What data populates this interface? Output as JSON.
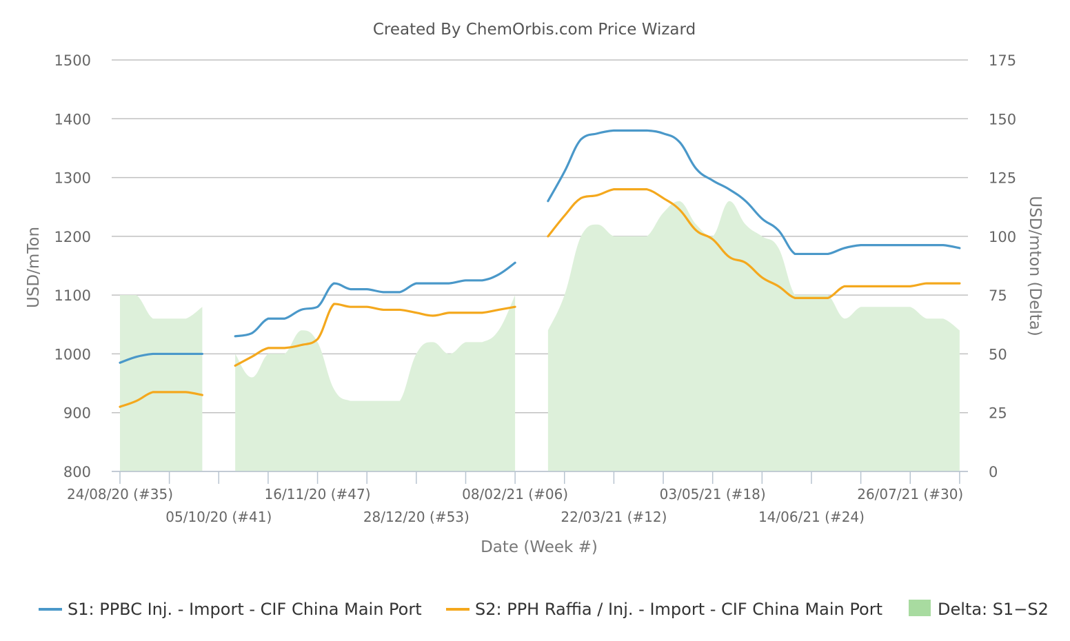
{
  "chart_data": {
    "type": "line",
    "title": "Created By ChemOrbis.com Price Wizard",
    "xlabel": "Date (Week #)",
    "ylabel_left": "USD/mTon",
    "ylabel_right": "USD/mton (Delta)",
    "ylim_left": [
      800,
      1500
    ],
    "ylim_right": [
      0,
      175
    ],
    "yticks_left": [
      "800",
      "900",
      "1000",
      "1100",
      "1200",
      "1300",
      "1400",
      "1500"
    ],
    "yticks_right": [
      "0",
      "25",
      "50",
      "75",
      "100",
      "125",
      "150",
      "175"
    ],
    "grid": true,
    "legend_position": "bottom",
    "x_week_ticks": [
      {
        "week": 0,
        "label": "24/08/20 (#35)"
      },
      {
        "week": 6,
        "label": "05/10/20 (#41)"
      },
      {
        "week": 12,
        "label": "16/11/20 (#47)"
      },
      {
        "week": 18,
        "label": "28/12/20 (#53)"
      },
      {
        "week": 24,
        "label": "08/02/21 (#06)"
      },
      {
        "week": 30,
        "label": "22/03/21 (#12)"
      },
      {
        "week": 36,
        "label": "03/05/21 (#18)"
      },
      {
        "week": 42,
        "label": "14/06/21 (#24)"
      },
      {
        "week": 48,
        "label": "26/07/21 (#30)"
      }
    ],
    "x_minor_weeks": [
      3,
      9,
      15,
      21,
      27,
      33,
      39,
      45,
      51
    ],
    "series": [
      {
        "name": "S1: PPBC Inj. - Import - CIF China Main Port",
        "color": "#4a98c9",
        "axis": "left",
        "segments": [
          [
            [
              0,
              985
            ],
            [
              1,
              995
            ],
            [
              2,
              1000
            ],
            [
              3,
              1000
            ],
            [
              4,
              1000
            ],
            [
              5,
              1000
            ]
          ],
          [
            [
              7,
              1030
            ],
            [
              8,
              1035
            ],
            [
              9,
              1060
            ],
            [
              10,
              1060
            ],
            [
              11,
              1075
            ],
            [
              12,
              1080
            ],
            [
              13,
              1120
            ],
            [
              14,
              1110
            ],
            [
              15,
              1110
            ],
            [
              16,
              1105
            ],
            [
              17,
              1105
            ],
            [
              18,
              1120
            ],
            [
              19,
              1120
            ],
            [
              20,
              1120
            ],
            [
              21,
              1125
            ],
            [
              22,
              1125
            ],
            [
              23,
              1135
            ],
            [
              24,
              1155
            ]
          ],
          [
            [
              26,
              1260
            ],
            [
              27,
              1310
            ],
            [
              28,
              1365
            ],
            [
              29,
              1375
            ],
            [
              30,
              1380
            ],
            [
              31,
              1380
            ],
            [
              32,
              1380
            ],
            [
              33,
              1375
            ],
            [
              34,
              1360
            ],
            [
              35,
              1315
            ],
            [
              36,
              1295
            ],
            [
              37,
              1280
            ],
            [
              38,
              1260
            ],
            [
              39,
              1230
            ],
            [
              40,
              1210
            ],
            [
              41,
              1170
            ],
            [
              42,
              1170
            ],
            [
              43,
              1170
            ],
            [
              44,
              1180
            ],
            [
              45,
              1185
            ],
            [
              46,
              1185
            ],
            [
              47,
              1185
            ],
            [
              48,
              1185
            ],
            [
              49,
              1185
            ],
            [
              50,
              1185
            ],
            [
              51,
              1180
            ]
          ]
        ]
      },
      {
        "name": "S2: PPH Raffia / Inj. - Import - CIF China Main Port",
        "color": "#f4a81d",
        "axis": "left",
        "segments": [
          [
            [
              0,
              910
            ],
            [
              1,
              920
            ],
            [
              2,
              935
            ],
            [
              3,
              935
            ],
            [
              4,
              935
            ],
            [
              5,
              930
            ]
          ],
          [
            [
              7,
              980
            ],
            [
              8,
              995
            ],
            [
              9,
              1010
            ],
            [
              10,
              1010
            ],
            [
              11,
              1015
            ],
            [
              12,
              1025
            ],
            [
              13,
              1085
            ],
            [
              14,
              1080
            ],
            [
              15,
              1080
            ],
            [
              16,
              1075
            ],
            [
              17,
              1075
            ],
            [
              18,
              1070
            ],
            [
              19,
              1065
            ],
            [
              20,
              1070
            ],
            [
              21,
              1070
            ],
            [
              22,
              1070
            ],
            [
              23,
              1075
            ],
            [
              24,
              1080
            ]
          ],
          [
            [
              26,
              1200
            ],
            [
              27,
              1235
            ],
            [
              28,
              1265
            ],
            [
              29,
              1270
            ],
            [
              30,
              1280
            ],
            [
              31,
              1280
            ],
            [
              32,
              1280
            ],
            [
              33,
              1265
            ],
            [
              34,
              1245
            ],
            [
              35,
              1210
            ],
            [
              36,
              1195
            ],
            [
              37,
              1165
            ],
            [
              38,
              1155
            ],
            [
              39,
              1130
            ],
            [
              40,
              1115
            ],
            [
              41,
              1095
            ],
            [
              42,
              1095
            ],
            [
              43,
              1095
            ],
            [
              44,
              1115
            ],
            [
              45,
              1115
            ],
            [
              46,
              1115
            ],
            [
              47,
              1115
            ],
            [
              48,
              1115
            ],
            [
              49,
              1120
            ],
            [
              50,
              1120
            ],
            [
              51,
              1120
            ]
          ]
        ]
      },
      {
        "name": "Delta: S1−S2",
        "color": "#a8dba0",
        "axis": "right",
        "type": "area",
        "segments": [
          [
            [
              0,
              75
            ],
            [
              1,
              75
            ],
            [
              2,
              65
            ],
            [
              3,
              65
            ],
            [
              4,
              65
            ],
            [
              5,
              70
            ]
          ],
          [
            [
              7,
              50
            ],
            [
              8,
              40
            ],
            [
              9,
              50
            ],
            [
              10,
              50
            ],
            [
              11,
              60
            ],
            [
              12,
              55
            ],
            [
              13,
              35
            ],
            [
              14,
              30
            ],
            [
              15,
              30
            ],
            [
              16,
              30
            ],
            [
              17,
              30
            ],
            [
              18,
              50
            ],
            [
              19,
              55
            ],
            [
              20,
              50
            ],
            [
              21,
              55
            ],
            [
              22,
              55
            ],
            [
              23,
              60
            ],
            [
              24,
              75
            ]
          ],
          [
            [
              26,
              60
            ],
            [
              27,
              75
            ],
            [
              28,
              100
            ],
            [
              29,
              105
            ],
            [
              30,
              100
            ],
            [
              31,
              100
            ],
            [
              32,
              100
            ],
            [
              33,
              110
            ],
            [
              34,
              115
            ],
            [
              35,
              105
            ],
            [
              36,
              100
            ],
            [
              37,
              115
            ],
            [
              38,
              105
            ],
            [
              39,
              100
            ],
            [
              40,
              95
            ],
            [
              41,
              75
            ],
            [
              42,
              75
            ],
            [
              43,
              75
            ],
            [
              44,
              65
            ],
            [
              45,
              70
            ],
            [
              46,
              70
            ],
            [
              47,
              70
            ],
            [
              48,
              70
            ],
            [
              49,
              65
            ],
            [
              50,
              65
            ],
            [
              51,
              60
            ]
          ]
        ]
      }
    ]
  }
}
